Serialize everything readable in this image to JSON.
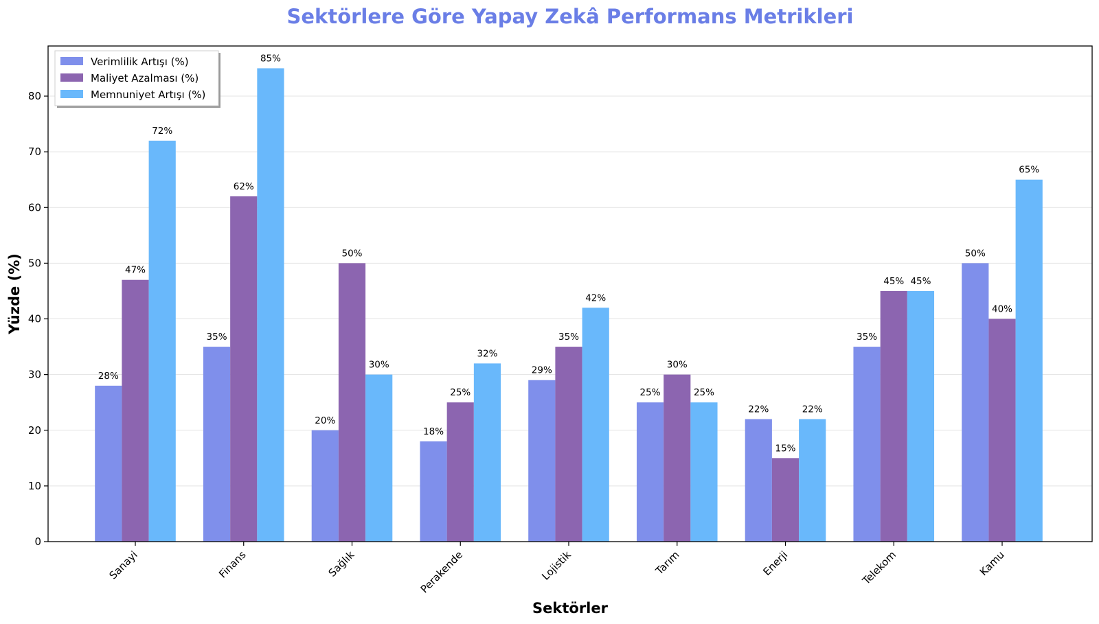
{
  "chart_data": {
    "type": "bar",
    "title": "Sektörlere Göre Yapay Zekâ Performans Metrikleri",
    "xlabel": "Sektörler",
    "ylabel": "Yüzde (%)",
    "ylim": [
      0,
      89
    ],
    "yticks": [
      0,
      10,
      20,
      30,
      40,
      50,
      60,
      70,
      80
    ],
    "grid": "horizontal",
    "legend_position": "top-left",
    "value_suffix": "%",
    "categories": [
      "Sanayi",
      "Finans",
      "Sağlık",
      "Perakende",
      "Lojistik",
      "Tarım",
      "Enerji",
      "Telekom",
      "Kamu"
    ],
    "series": [
      {
        "name": "Verimlilik Artışı (%)",
        "values": [
          28,
          35,
          20,
          18,
          29,
          25,
          22,
          35,
          50
        ],
        "color": "#7f8feb"
      },
      {
        "name": "Maliyet Azalması (%)",
        "values": [
          47,
          62,
          50,
          25,
          35,
          30,
          15,
          45,
          40
        ],
        "color": "#8c65b0"
      },
      {
        "name": "Memnuniyet Artışı (%)",
        "values": [
          72,
          85,
          30,
          32,
          42,
          25,
          22,
          45,
          65
        ],
        "color": "#69b8fb"
      }
    ]
  },
  "colors": {
    "title": "#6a7ee6",
    "axis": "#000000",
    "grid": "#e3e3e3"
  }
}
